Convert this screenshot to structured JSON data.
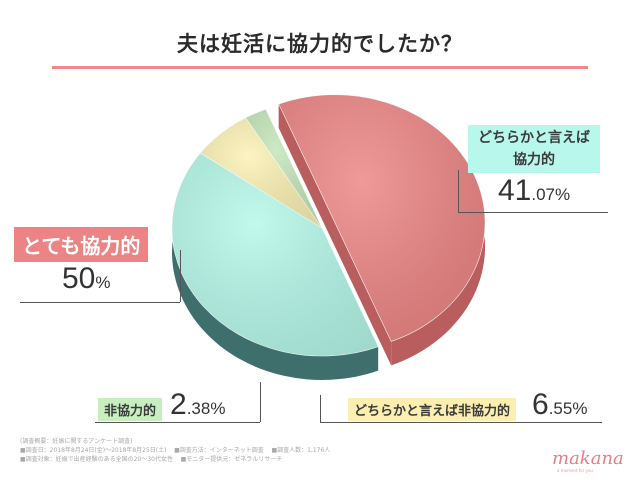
{
  "title": "夫は妊活に協力的でしたか？",
  "labels": {
    "very": "とても協力的",
    "some_line1": "どちらかと言えば",
    "some_line2": "協力的",
    "not": "非協力的",
    "somewhat_not": "どちらかと言えば非協力的"
  },
  "values": {
    "very_big": "50",
    "very_unit": "%",
    "some_big": "41",
    "some_small": ".07%",
    "not_big": "2",
    "not_small": ".38%",
    "somewhat_not_big": "6",
    "somewhat_not_small": ".55%"
  },
  "notes": {
    "line1": "(調査概要：妊娠に関するアンケート調査)",
    "line2a": "■調査日：2018年8月24日(金)〜2018年8月25日(土)",
    "line2b": "■調査方法：インターネット調査",
    "line2c": "■調査人数：1,176人",
    "line3a": "■調査対象：妊娠で出産経験のある全国の20〜30代女性",
    "line3b": "■モニター提供元：ゼネラルリサーチ"
  },
  "logo": {
    "name": "makana",
    "tagline": "a moment for you"
  },
  "chart_data": {
    "type": "pie",
    "title": "夫は妊活に協力的でしたか？",
    "categories": [
      "とても協力的",
      "どちらかと言えば協力的",
      "どちらかと言えば非協力的",
      "非協力的"
    ],
    "values": [
      50,
      41.07,
      6.55,
      2.38
    ],
    "unit": "%",
    "colors": [
      "#ec8584",
      "#b5f8e9",
      "#fbf1b4",
      "#c3e6b8"
    ],
    "side_colors": [
      "#b95d5e",
      "#3f6f6c",
      "#c2a86a",
      "#6f9163"
    ]
  }
}
